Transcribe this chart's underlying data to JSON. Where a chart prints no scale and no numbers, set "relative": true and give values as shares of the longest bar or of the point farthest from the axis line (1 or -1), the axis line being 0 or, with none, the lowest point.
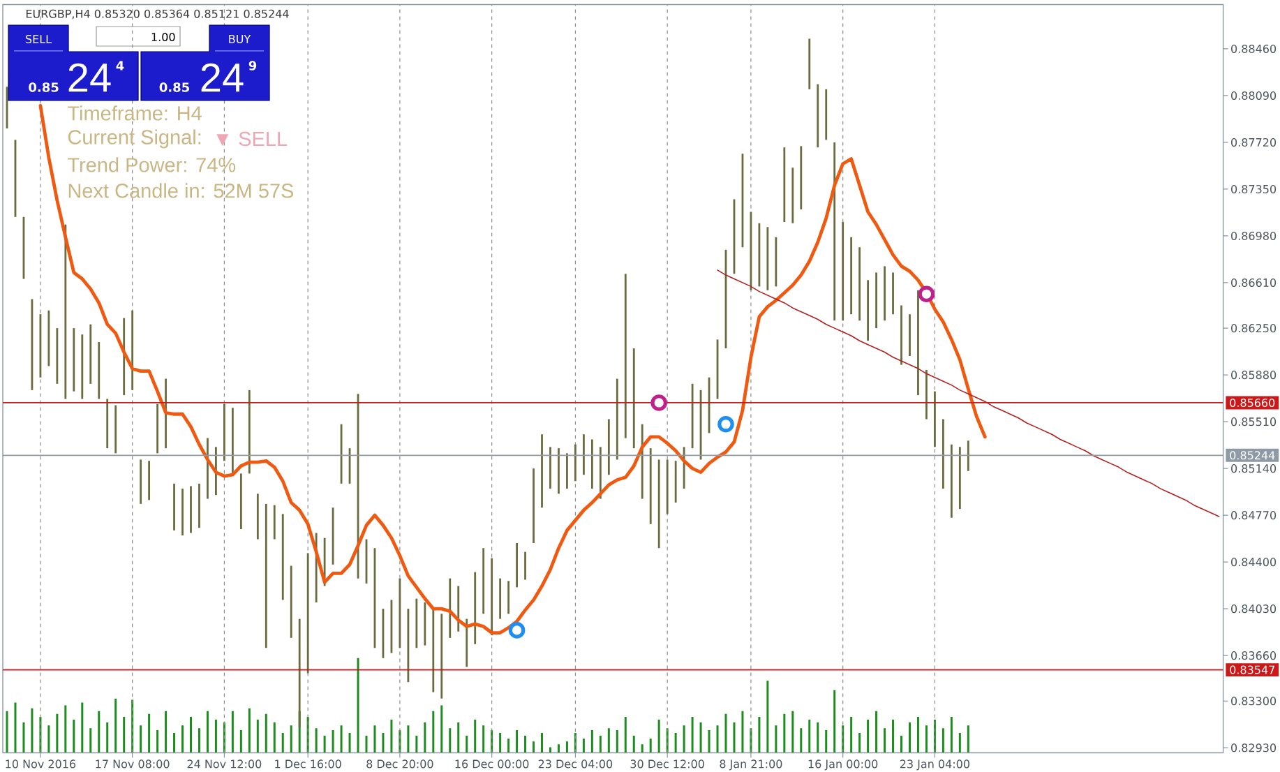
{
  "chart_data": [
    {
      "type": "bar",
      "title": "EURGBP,H4 0.85320 0.85364 0.85121 0.85244",
      "categories": [
        null,
        null,
        null,
        null,
        "10 Nov 2016",
        null,
        null,
        null,
        null,
        null,
        null,
        null,
        null,
        null,
        null,
        "17 Nov 08:00",
        null,
        null,
        null,
        null,
        null,
        null,
        null,
        null,
        null,
        null,
        "24 Nov 12:00",
        null,
        null,
        null,
        null,
        null,
        null,
        null,
        null,
        null,
        "1 Dec 16:00",
        null,
        null,
        null,
        null,
        null,
        null,
        null,
        null,
        null,
        null,
        "8 Dec 20:00",
        null,
        null,
        null,
        null,
        null,
        null,
        null,
        null,
        null,
        null,
        "16 Dec 00:00",
        null,
        null,
        null,
        null,
        null,
        null,
        null,
        null,
        null,
        "23 Dec 04:00",
        null,
        null,
        null,
        null,
        null,
        null,
        null,
        null,
        null,
        null,
        "30 Dec 12:00",
        null,
        null,
        null,
        null,
        null,
        null,
        null,
        null,
        null,
        "8 Jan 21:00",
        null,
        null,
        null,
        null,
        null,
        null,
        null,
        null,
        null,
        null,
        "16 Jan 00:00",
        null,
        null,
        null,
        null,
        null,
        null,
        null,
        null,
        null,
        null,
        "23 Jan 04:00",
        null,
        null,
        null,
        null,
        null,
        null,
        null,
        null,
        null,
        null,
        null,
        null,
        null,
        null,
        null,
        null,
        null,
        null,
        null,
        null,
        null,
        null,
        null,
        null,
        null,
        null,
        null,
        null,
        null,
        null,
        null,
        null,
        null,
        null
      ],
      "ylim": [
        0.8289,
        0.8881
      ],
      "yticks": [
        {
          "value": 0.8846,
          "label": "0.88460"
        },
        {
          "value": 0.8809,
          "label": "0.88090"
        },
        {
          "value": 0.8772,
          "label": "0.87720"
        },
        {
          "value": 0.8735,
          "label": "0.87350"
        },
        {
          "value": 0.8698,
          "label": "0.86980"
        },
        {
          "value": 0.8661,
          "label": "0.86610"
        },
        {
          "value": 0.8625,
          "label": "0.86250"
        },
        {
          "value": 0.8588,
          "label": "0.85880"
        },
        {
          "value": 0.8551,
          "label": "0.85510"
        },
        {
          "value": 0.8514,
          "label": "0.85140"
        },
        {
          "value": 0.8477,
          "label": "0.84770"
        },
        {
          "value": 0.844,
          "label": "0.84400"
        },
        {
          "value": 0.8403,
          "label": "0.84030"
        },
        {
          "value": 0.8366,
          "label": "0.83660"
        },
        {
          "value": 0.833,
          "label": "0.83300"
        },
        {
          "value": 0.8293,
          "label": "0.82930"
        }
      ],
      "grid": "x",
      "series": [
        {
          "type": "bar",
          "color": "#6b6b40",
          "base": [
            0.8783,
            0.8713,
            0.8664,
            0.8576,
            0.8586,
            0.8595,
            0.8581,
            0.8569,
            0.8575,
            0.8569,
            0.8581,
            0.8569,
            0.853,
            0.8526,
            0.8572,
            0.8576,
            0.8486,
            0.8489,
            0.8526,
            0.853,
            0.8465,
            0.8461,
            0.8463,
            0.8467,
            0.849,
            0.8493,
            0.852,
            0.851,
            0.8466,
            0.851,
            0.8458,
            0.8372,
            0.8458,
            0.841,
            0.838,
            0.8309,
            0.8352,
            0.8408,
            0.8421,
            0.8438,
            0.8502,
            0.8502,
            0.8427,
            0.8423,
            0.8372,
            0.8364,
            0.8368,
            0.8372,
            0.8345,
            0.8372,
            0.8374,
            0.8337,
            0.8332,
            0.838,
            0.8385,
            0.8357,
            0.8375,
            0.8399,
            0.8382,
            0.8395,
            0.8399,
            0.842,
            0.8426,
            0.8455,
            0.8483,
            0.8498,
            0.8494,
            0.8498,
            0.8504,
            0.8509,
            0.8498,
            0.849,
            0.8509,
            0.8521,
            0.8538,
            0.853,
            0.849,
            0.847,
            0.8451,
            0.8478,
            0.8487,
            0.8498,
            0.853,
            0.8521,
            0.8542,
            0.8569,
            0.8609,
            0.8668,
            0.8689,
            0.8655,
            0.8658,
            0.8655,
            0.8658,
            0.8709,
            0.8708,
            0.8719,
            0.8814,
            0.8768,
            0.8774,
            0.8631,
            0.8631,
            0.8636,
            0.8631,
            0.8615,
            0.8625,
            0.8631,
            0.8636,
            0.8596,
            0.8603,
            0.8572,
            0.8553,
            0.8531,
            0.8498,
            0.8475,
            0.8482,
            0.8512,
            null,
            null,
            null,
            null,
            null,
            null,
            null,
            null,
            null,
            null,
            null,
            null,
            null,
            null,
            null,
            null,
            null,
            null,
            null,
            null,
            null,
            null,
            null,
            null,
            null,
            null,
            null,
            null,
            null,
            null
          ],
          "values": [
            0.0033,
            0.0061,
            0.0049,
            0.0072,
            0.005,
            0.0044,
            0.0044,
            0.0138,
            0.005,
            0.0051,
            0.0047,
            0.0045,
            0.0039,
            0.0038,
            0.0061,
            0.0063,
            0.0035,
            0.0031,
            0.0039,
            0.0055,
            0.0037,
            0.0037,
            0.0037,
            0.0035,
            0.0048,
            0.0038,
            0.0045,
            0.0052,
            0.0044,
            0.0066,
            0.0036,
            0.0114,
            0.0027,
            0.0068,
            0.0057,
            0.0086,
            0.0095,
            0.0055,
            0.0038,
            0.0045,
            0.0047,
            0.0028,
            0.0146,
            0.0035,
            0.0079,
            0.0039,
            0.0042,
            0.0055,
            0.0058,
            0.0039,
            0.0034,
            0.0066,
            0.0067,
            0.0047,
            0.0036,
            0.0038,
            0.0057,
            0.0052,
            0.0061,
            0.0032,
            0.0026,
            0.0035,
            0.0022,
            0.0059,
            0.0058,
            0.0033,
            0.0036,
            0.0028,
            0.0029,
            0.0032,
            0.0039,
            0.0041,
            0.0044,
            0.0064,
            0.013,
            0.0079,
            0.0059,
            0.006,
            0.007,
            0.0043,
            0.0033,
            0.0033,
            0.0051,
            0.0055,
            0.0044,
            0.0047,
            0.0078,
            0.0059,
            0.0074,
            0.0062,
            0.005,
            0.005,
            0.0039,
            0.0059,
            0.0044,
            0.005,
            0.004,
            0.005,
            0.004,
            0.0141,
            0.0078,
            0.0061,
            0.0058,
            0.0048,
            0.0044,
            0.0043,
            0.0033,
            0.0047,
            0.0033,
            0.0083,
            0.0039,
            0.0044,
            0.0055,
            0.0058,
            0.0049,
            0.0024,
            null,
            null,
            null,
            null,
            null,
            null,
            null,
            null,
            null,
            null,
            null,
            null,
            null,
            null,
            null,
            null,
            null,
            null,
            null,
            null,
            null,
            null,
            null,
            null,
            null,
            null,
            null,
            null,
            null,
            null
          ]
        },
        {
          "type": "line",
          "color": "#f05a10",
          "values": [
            null,
            null,
            null,
            null,
            0.8801,
            0.876,
            0.8726,
            0.8697,
            0.8669,
            0.8664,
            0.8656,
            0.8645,
            0.8628,
            0.8621,
            0.8606,
            0.8593,
            0.8591,
            0.8591,
            0.8575,
            0.8558,
            0.8557,
            0.8557,
            0.8547,
            0.8533,
            0.8521,
            0.8511,
            0.8508,
            0.8509,
            0.8516,
            0.8519,
            0.8519,
            0.852,
            0.8515,
            0.8504,
            0.8487,
            0.8481,
            0.847,
            0.8448,
            0.8424,
            0.8431,
            0.8431,
            0.8438,
            0.8453,
            0.8469,
            0.8477,
            0.8469,
            0.8459,
            0.8445,
            0.8429,
            0.842,
            0.8411,
            0.8403,
            0.8403,
            0.8401,
            0.8394,
            0.8389,
            0.8391,
            0.8389,
            0.8384,
            0.8384,
            0.8388,
            0.8393,
            0.8402,
            0.841,
            0.8421,
            0.8434,
            0.8451,
            0.8465,
            0.8473,
            0.8481,
            0.8487,
            0.8494,
            0.8501,
            0.8505,
            0.8507,
            0.8516,
            0.8531,
            0.8539,
            0.8539,
            0.8534,
            0.8528,
            0.852,
            0.8514,
            0.8511,
            0.8518,
            0.8523,
            0.8527,
            0.8535,
            0.856,
            0.8602,
            0.8634,
            0.8642,
            0.8647,
            0.8653,
            0.8659,
            0.8667,
            0.8678,
            0.8693,
            0.8712,
            0.8738,
            0.8755,
            0.8759,
            0.8738,
            0.8717,
            0.8707,
            0.8695,
            0.8683,
            0.8674,
            0.867,
            0.8663,
            0.8653,
            0.864,
            0.863,
            0.8616,
            0.86,
            0.8577,
            0.8555,
            0.8539,
            null,
            null,
            null,
            null,
            null,
            null,
            null,
            null,
            null,
            null,
            null,
            null,
            null,
            null,
            null,
            null,
            null,
            null,
            null,
            null,
            null,
            null,
            null,
            null,
            null,
            null,
            null,
            null
          ]
        },
        {
          "type": "line",
          "color": "#b22222",
          "values": [
            null,
            null,
            null,
            null,
            null,
            null,
            null,
            null,
            null,
            null,
            null,
            null,
            null,
            null,
            null,
            null,
            null,
            null,
            null,
            null,
            null,
            null,
            null,
            null,
            null,
            null,
            null,
            null,
            null,
            null,
            null,
            null,
            null,
            null,
            null,
            null,
            null,
            null,
            null,
            null,
            null,
            null,
            null,
            null,
            null,
            null,
            null,
            null,
            null,
            null,
            null,
            null,
            null,
            null,
            null,
            null,
            null,
            null,
            null,
            null,
            null,
            null,
            null,
            null,
            null,
            null,
            null,
            null,
            null,
            null,
            null,
            null,
            null,
            null,
            null,
            null,
            null,
            null,
            null,
            null,
            null,
            null,
            null,
            null,
            null,
            0.8671,
            0.8667,
            0.8664,
            0.8661,
            0.8658,
            0.8654,
            0.8651,
            0.8648,
            0.8645,
            0.8641,
            0.8638,
            0.8635,
            0.8632,
            0.8628,
            0.8625,
            0.8622,
            0.8619,
            0.8615,
            0.8612,
            0.8609,
            0.8606,
            0.8602,
            0.8599,
            0.8596,
            0.8593,
            0.8589,
            0.8586,
            0.8583,
            0.858,
            0.8576,
            0.8573,
            0.857,
            0.8567,
            0.8563,
            0.856,
            0.8557,
            0.8554,
            0.855,
            0.8547,
            0.8544,
            0.8541,
            0.8537,
            0.8534,
            0.8531,
            0.8528,
            0.8524,
            0.8521,
            0.8518,
            0.8515,
            0.8511,
            0.8508,
            0.8505,
            0.8502,
            0.8498,
            0.8495,
            0.8492,
            0.8489,
            0.8485,
            0.8482,
            0.8479,
            0.8476
          ]
        },
        {
          "type": "scatter",
          "color": "#1e8ef0",
          "marker": "circle",
          "values": [
            null,
            null,
            null,
            null,
            null,
            null,
            null,
            null,
            null,
            null,
            null,
            null,
            null,
            null,
            null,
            null,
            null,
            null,
            null,
            null,
            null,
            null,
            null,
            null,
            null,
            null,
            null,
            null,
            null,
            null,
            null,
            null,
            null,
            null,
            null,
            null,
            null,
            null,
            null,
            null,
            null,
            null,
            null,
            null,
            null,
            null,
            null,
            null,
            null,
            null,
            null,
            null,
            null,
            null,
            null,
            null,
            null,
            null,
            null,
            null,
            null,
            0.8386,
            null,
            null,
            null,
            null,
            null,
            null,
            null,
            null,
            null,
            null,
            null,
            null,
            null,
            null,
            null,
            null,
            null,
            null,
            null,
            null,
            null,
            null,
            null,
            null,
            0.8549,
            null,
            null,
            null,
            null,
            null,
            null,
            null,
            null,
            null,
            null,
            null,
            null,
            null,
            null,
            null,
            null,
            null,
            null,
            null,
            null,
            null,
            null,
            null,
            null,
            null,
            null,
            null,
            null,
            null,
            null,
            null,
            null,
            null,
            null,
            null,
            null,
            null,
            null,
            null,
            null,
            null,
            null,
            null,
            null,
            null,
            null,
            null,
            null,
            null,
            null,
            null,
            null,
            null,
            null,
            null,
            null,
            null,
            null,
            null
          ]
        },
        {
          "type": "scatter",
          "color": "#c0208c",
          "marker": "circle",
          "values": [
            null,
            null,
            null,
            null,
            null,
            null,
            null,
            null,
            null,
            null,
            null,
            null,
            null,
            null,
            null,
            null,
            null,
            null,
            null,
            null,
            null,
            null,
            null,
            null,
            null,
            null,
            null,
            null,
            null,
            null,
            null,
            null,
            null,
            null,
            null,
            null,
            null,
            null,
            null,
            null,
            null,
            null,
            null,
            null,
            null,
            null,
            null,
            null,
            null,
            null,
            null,
            null,
            null,
            null,
            null,
            null,
            null,
            null,
            null,
            null,
            null,
            null,
            null,
            null,
            null,
            null,
            null,
            null,
            null,
            null,
            null,
            null,
            null,
            null,
            null,
            null,
            null,
            null,
            0.8566,
            null,
            null,
            null,
            null,
            null,
            null,
            null,
            null,
            null,
            null,
            null,
            null,
            null,
            null,
            null,
            null,
            null,
            null,
            null,
            null,
            null,
            null,
            null,
            null,
            null,
            null,
            null,
            null,
            null,
            null,
            null,
            0.8652,
            null,
            null,
            null,
            null,
            null,
            null,
            null,
            null,
            null,
            null,
            null,
            null,
            null,
            null,
            null,
            null,
            null,
            null,
            null,
            null,
            null,
            null,
            null,
            null,
            null,
            null,
            null,
            null,
            null,
            null,
            null,
            null,
            null,
            null,
            null
          ]
        }
      ],
      "ref_lines": [
        {
          "axis": "y",
          "value": 0.8566,
          "label": "0.85660",
          "color": "#cc1818"
        },
        {
          "axis": "y",
          "value": 0.83547,
          "label": "0.83547",
          "color": "#cc1818"
        },
        {
          "axis": "y",
          "value": 0.85244,
          "label": "0.85244",
          "color": "#8e9aa6"
        }
      ],
      "annotations": [
        "SELL",
        "1.00",
        "BUY",
        "0.85",
        "24",
        "4",
        "0.85",
        "24",
        "9",
        "Timeframe: H4",
        "Current Signal:",
        "▼ SELL",
        "Trend Power: 74%",
        "Next Candle in: 52M 57S"
      ]
    },
    {
      "type": "bar",
      "relative": true,
      "tick_labels": false,
      "color": "#1e8c1e",
      "categories": [
        null,
        null,
        null,
        null,
        null,
        null,
        null,
        null,
        null,
        null,
        null,
        null,
        null,
        null,
        null,
        null,
        null,
        null,
        null,
        null,
        null,
        null,
        null,
        null,
        null,
        null,
        null,
        null,
        null,
        null,
        null,
        null,
        null,
        null,
        null,
        null,
        null,
        null,
        null,
        null,
        null,
        null,
        null,
        null,
        null,
        null,
        null,
        null,
        null,
        null,
        null,
        null,
        null,
        null,
        null,
        null,
        null,
        null,
        null,
        null,
        null,
        null,
        null,
        null,
        null,
        null,
        null,
        null,
        null,
        null,
        null,
        null,
        null,
        null,
        null,
        null,
        null,
        null,
        null,
        null,
        null,
        null,
        null,
        null,
        null,
        null,
        null,
        null,
        null,
        null,
        null,
        null,
        null,
        null,
        null,
        null,
        null,
        null,
        null,
        null,
        null,
        null,
        null,
        null,
        null,
        null,
        null,
        null,
        null,
        null,
        null,
        null,
        null,
        null,
        null,
        null,
        null,
        null,
        null,
        null,
        null,
        null,
        null,
        null,
        null,
        null,
        null,
        null,
        null,
        null,
        null,
        null,
        null,
        null,
        null,
        null,
        null,
        null,
        null,
        null,
        null,
        null,
        null,
        null,
        null,
        null
      ],
      "values": [
        0.44,
        0.53,
        0.32,
        0.47,
        0.38,
        0.29,
        0.41,
        0.5,
        0.35,
        0.53,
        0.26,
        0.44,
        0.32,
        0.57,
        0.38,
        0.56,
        0.29,
        0.41,
        0.24,
        0.44,
        0.21,
        0.29,
        0.38,
        0.26,
        0.44,
        0.35,
        0.32,
        0.44,
        0.24,
        0.47,
        0.35,
        0.41,
        0.32,
        0.21,
        0.29,
        0.44,
        0.38,
        0.26,
        0.18,
        0.24,
        0.29,
        0.21,
        1,
        0.18,
        0.29,
        0.21,
        0.35,
        0.24,
        0.29,
        0.18,
        0.32,
        0.44,
        0.5,
        0.26,
        0.32,
        0.18,
        0.35,
        0.29,
        0.24,
        0.21,
        0.15,
        0.24,
        0.18,
        0.12,
        0.21,
        0.06,
        0.09,
        0.12,
        0.21,
        0.15,
        0.24,
        0.18,
        0.26,
        0.24,
        0.38,
        0.18,
        0.09,
        0.15,
        0.35,
        0.26,
        0.21,
        0.29,
        0.38,
        0.32,
        0.24,
        0.29,
        0.41,
        0.32,
        0.44,
        0.26,
        0.38,
        0.76,
        0.29,
        0.41,
        0.44,
        0.26,
        0.35,
        0.32,
        0.24,
        0.66,
        0.29,
        0.38,
        0.21,
        0.35,
        0.44,
        0.26,
        0.35,
        0.18,
        0.32,
        0.38,
        0.29,
        0.35,
        0.26,
        0.38,
        0.21,
        0.29,
        null,
        null,
        null,
        null,
        null,
        null,
        null,
        null,
        null,
        null,
        null,
        null,
        null,
        null,
        null,
        null,
        null,
        null,
        null,
        null,
        null,
        null,
        null,
        null,
        null,
        null,
        null,
        null,
        null,
        null
      ]
    }
  ]
}
